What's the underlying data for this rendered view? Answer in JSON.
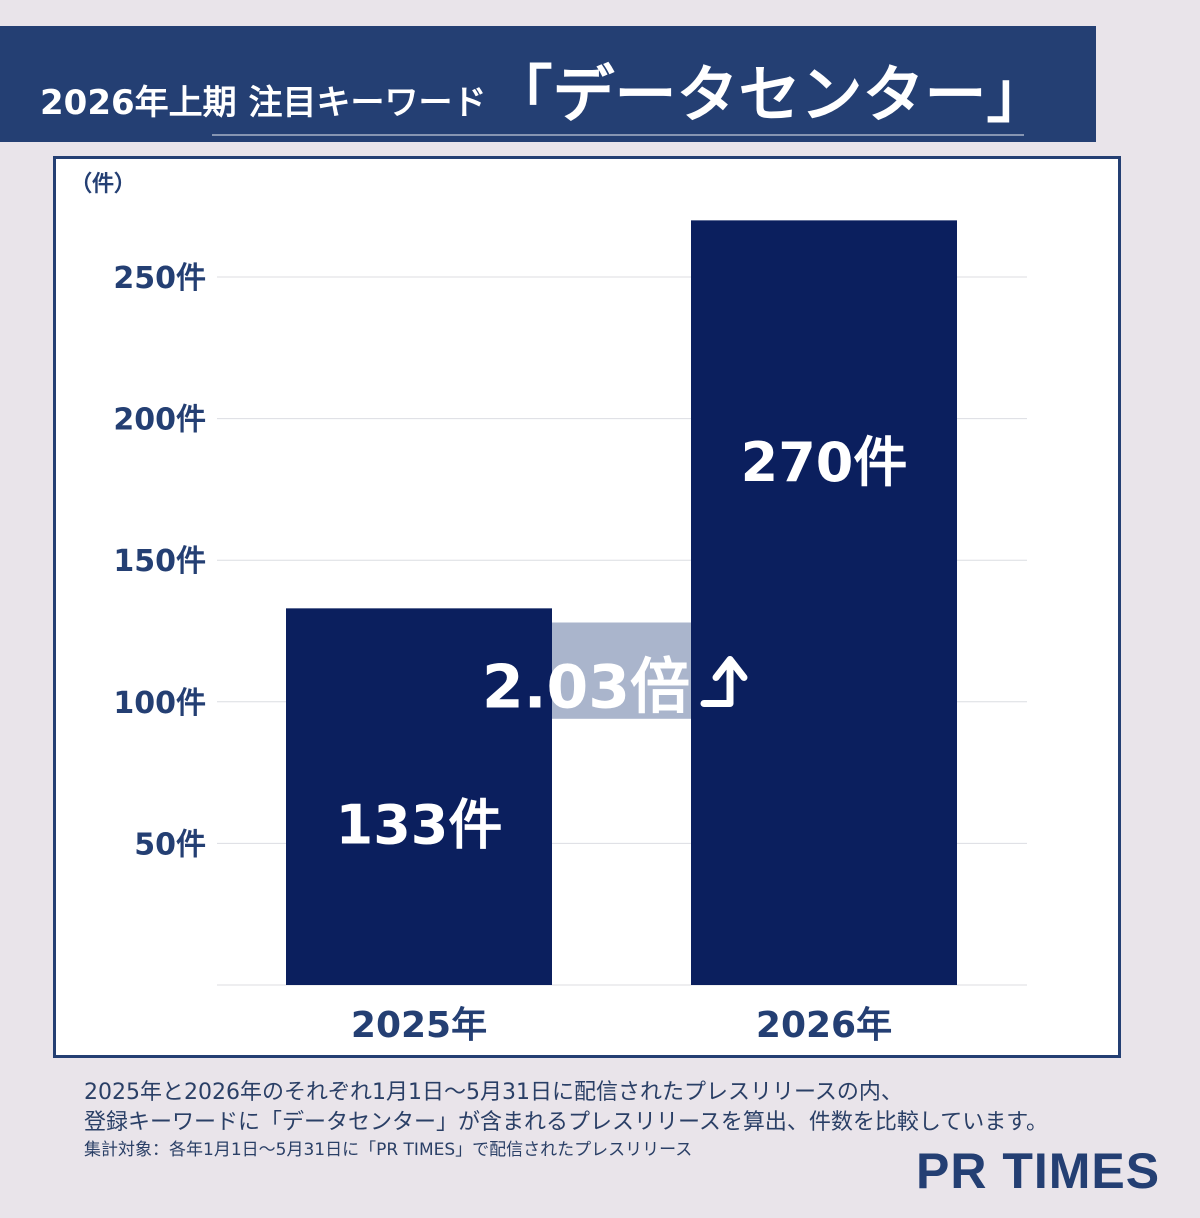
{
  "header": {
    "title_prefix": "2026年上期 注目キーワード",
    "title_keyword": "「データセンター」"
  },
  "chart_data": {
    "type": "bar",
    "categories": [
      "2025年",
      "2026年"
    ],
    "values": [
      133,
      270
    ],
    "value_labels": [
      "133件",
      "270件"
    ],
    "ylabel": "（件）",
    "ylim": [
      0,
      290
    ],
    "yticks": [
      50,
      100,
      150,
      200,
      250
    ],
    "ytick_labels": [
      "50件",
      "100件",
      "150件",
      "200件",
      "250件"
    ],
    "grid": true,
    "annotation": "2.03倍",
    "annotation_icon": "arrow-up-right-icon",
    "bar_color": "#0b1f5e",
    "grid_color": "#dcdde2",
    "axis_text_color": "#243f73",
    "annotation_band_color": "#aab5cc"
  },
  "footnote": {
    "line1": "2025年と2026年のそれぞれ1月1日～5月31日に配信されたプレスリリースの内、",
    "line2": "登録キーワードに「データセンター」が含まれるプレスリリースを算出、件数を比較しています。",
    "source": "集計対象：各年1月1日～5月31日に「PR TIMES」で配信されたプレスリリース"
  },
  "logo": {
    "text": "PR TIMES"
  }
}
